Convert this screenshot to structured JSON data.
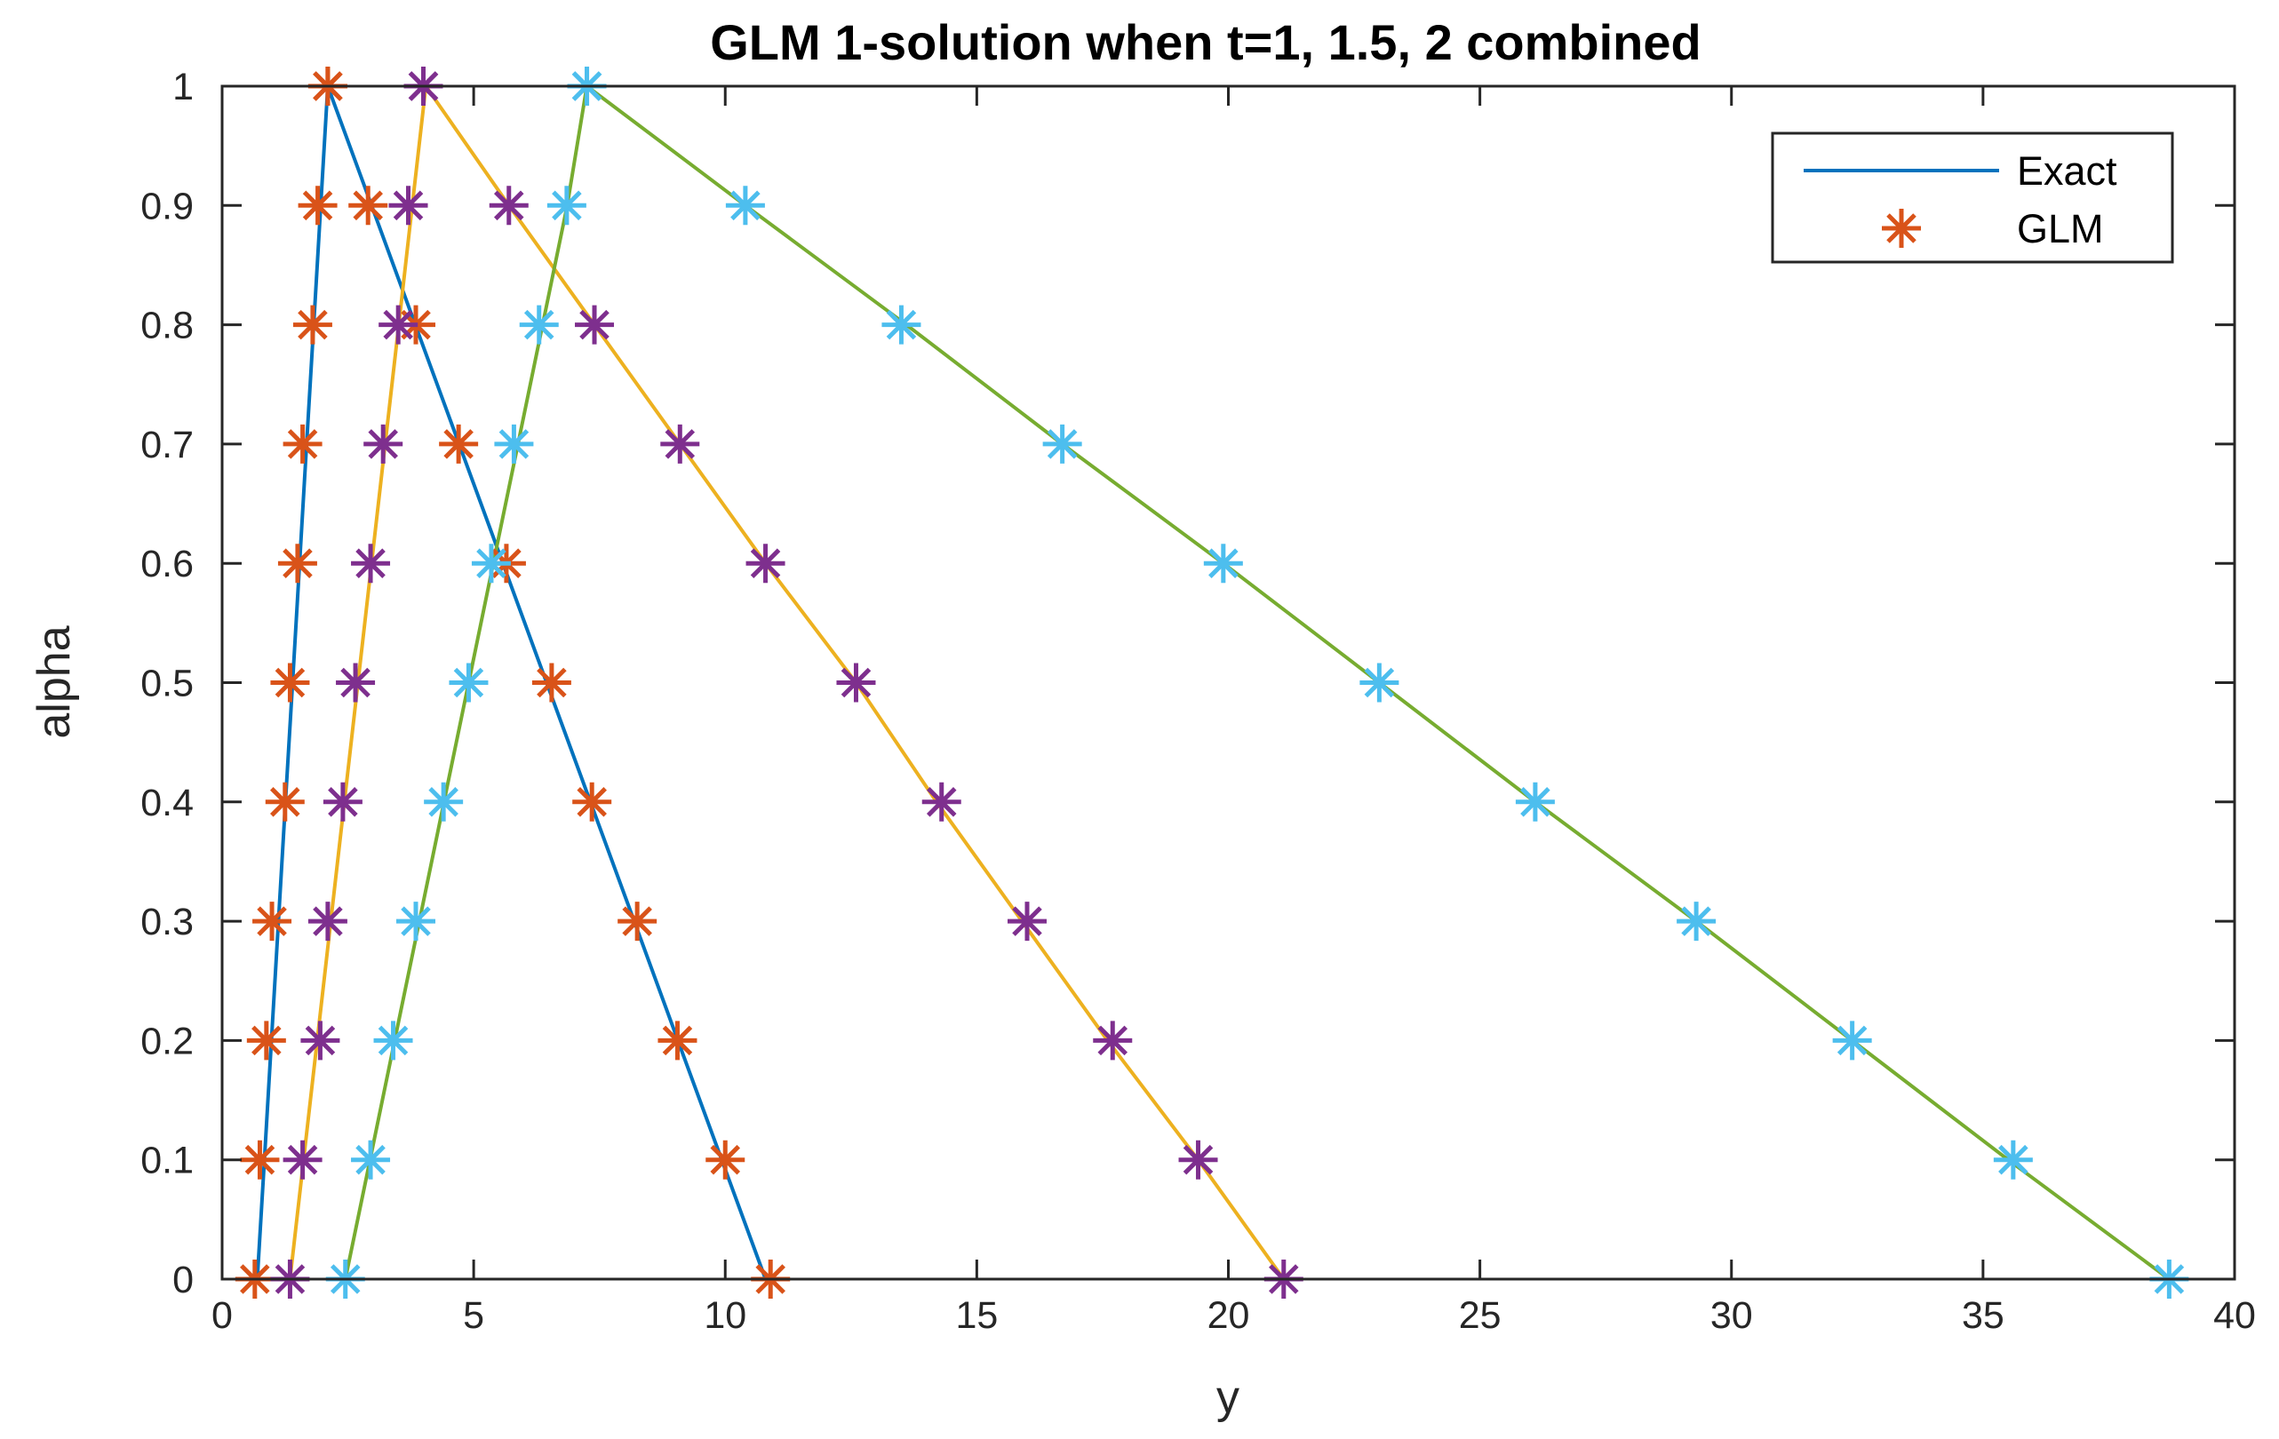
{
  "chart_data": {
    "type": "line",
    "title": "GLM 1-solution when t=1, 1.5, 2 combined",
    "xlabel": "y",
    "ylabel": "alpha",
    "xlim": [
      0,
      40
    ],
    "ylim": [
      0,
      1
    ],
    "xticks": [
      0,
      5,
      10,
      15,
      20,
      25,
      30,
      35,
      40
    ],
    "xtick_labels": [
      "0",
      "5",
      "10",
      "15",
      "20",
      "25",
      "30",
      "35",
      "40"
    ],
    "yticks": [
      0,
      0.1,
      0.2,
      0.3,
      0.4,
      0.5,
      0.6,
      0.7,
      0.8,
      0.9,
      1
    ],
    "ytick_labels": [
      "0",
      "0.1",
      "0.2",
      "0.3",
      "0.4",
      "0.5",
      "0.6",
      "0.7",
      "0.8",
      "0.9",
      "1"
    ],
    "grid": false,
    "legend": {
      "position": "top-right",
      "entries": [
        {
          "label": "Exact",
          "style": "line",
          "color": "#0072BD"
        },
        {
          "label": "GLM",
          "style": "star",
          "color": "#D95319"
        }
      ]
    },
    "alpha": [
      0,
      0.1,
      0.2,
      0.3,
      0.4,
      0.5,
      0.6,
      0.7,
      0.8,
      0.9,
      1
    ],
    "series": [
      {
        "t": 1,
        "line_color": "#0072BD",
        "marker_color": "#D95319",
        "exact_left": [
          0.7,
          0.84,
          0.98,
          1.12,
          1.26,
          1.4,
          1.54,
          1.68,
          1.82,
          1.96,
          2.1
        ],
        "exact_right": [
          10.8,
          9.93,
          9.06,
          8.19,
          7.32,
          6.45,
          5.58,
          4.71,
          3.84,
          2.97,
          2.1
        ],
        "glm_left": [
          0.65,
          0.75,
          0.88,
          0.99,
          1.25,
          1.35,
          1.5,
          1.6,
          1.8,
          1.9,
          2.1
        ],
        "glm_right": [
          10.9,
          10.0,
          9.05,
          8.25,
          7.35,
          6.55,
          5.65,
          4.7,
          3.85,
          2.9,
          2.1
        ]
      },
      {
        "t": 1.5,
        "line_color": "#EDB120",
        "marker_color": "#7E2F8E",
        "exact_left": [
          1.35,
          1.62,
          1.89,
          2.16,
          2.43,
          2.7,
          2.97,
          3.24,
          3.51,
          3.78,
          4.05
        ],
        "exact_right": [
          21.1,
          19.4,
          17.6,
          15.9,
          14.2,
          12.6,
          10.8,
          9.1,
          7.4,
          5.7,
          4.05
        ],
        "glm_left": [
          1.35,
          1.6,
          1.95,
          2.1,
          2.4,
          2.65,
          2.95,
          3.2,
          3.5,
          3.7,
          4.0
        ],
        "glm_right": [
          21.1,
          19.4,
          17.7,
          16.0,
          14.3,
          12.6,
          10.8,
          9.1,
          7.4,
          5.7,
          4.0
        ]
      },
      {
        "t": 2,
        "line_color": "#77AC30",
        "marker_color": "#4DBEEE",
        "exact_left": [
          2.45,
          2.94,
          3.43,
          3.92,
          4.41,
          4.9,
          5.39,
          5.88,
          6.37,
          6.86,
          7.25
        ],
        "exact_right": [
          38.7,
          35.5,
          32.4,
          29.3,
          26.1,
          23.0,
          19.9,
          16.7,
          13.6,
          10.4,
          7.25
        ],
        "glm_left": [
          2.45,
          2.95,
          3.4,
          3.85,
          4.4,
          4.9,
          5.35,
          5.8,
          6.3,
          6.85,
          7.25
        ],
        "glm_right": [
          38.7,
          35.6,
          32.4,
          29.3,
          26.1,
          23.0,
          19.9,
          16.7,
          13.5,
          10.4,
          7.25
        ]
      }
    ]
  }
}
